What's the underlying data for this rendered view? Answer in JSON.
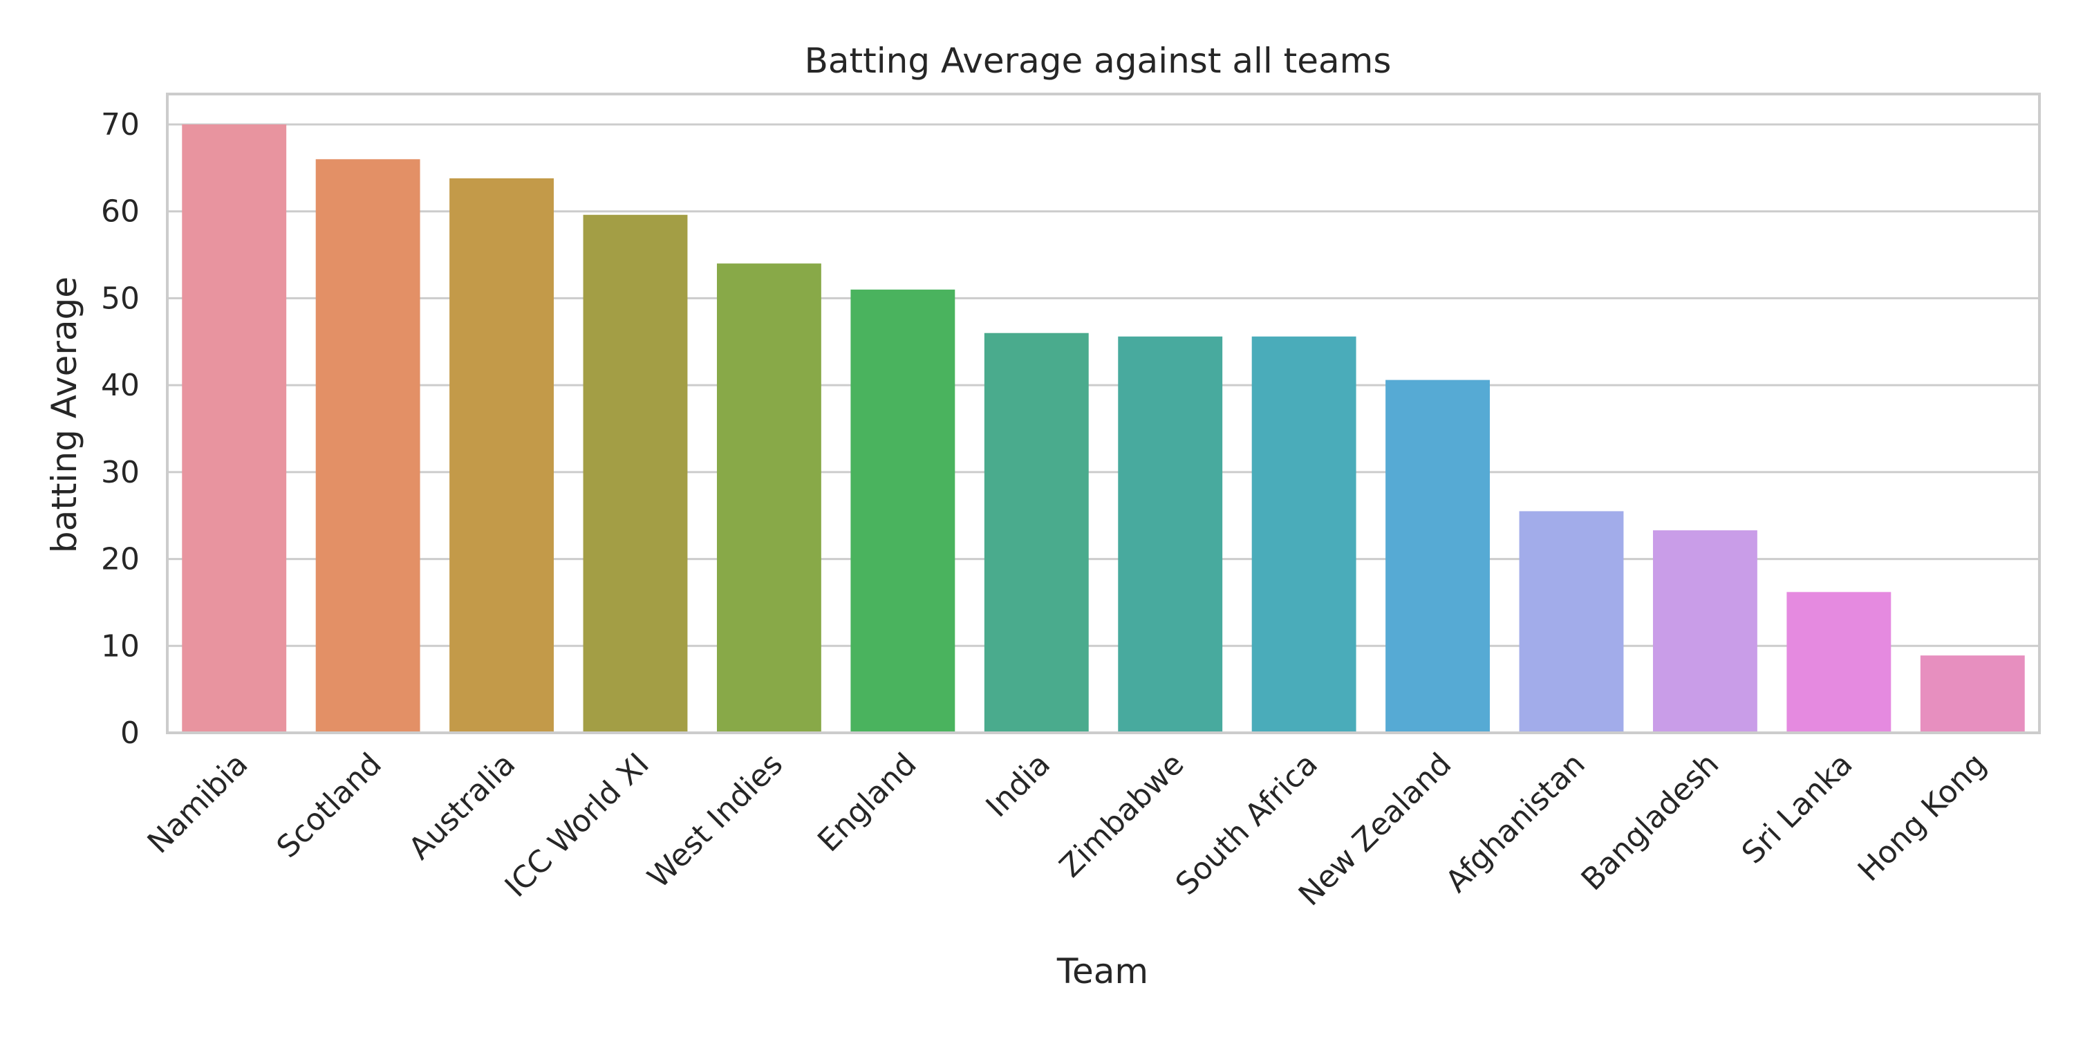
{
  "chart_data": {
    "type": "bar",
    "title": "Batting Average against all teams",
    "xlabel": "Team",
    "ylabel": "batting Average",
    "categories": [
      "Namibia",
      "Scotland",
      "Australia",
      "ICC World XI",
      "West Indies",
      "England",
      "India",
      "Zimbabwe",
      "South Africa",
      "New Zealand",
      "Afghanistan",
      "Bangladesh",
      "Sri Lanka",
      "Hong Kong"
    ],
    "values": [
      70,
      66,
      63.8,
      59.6,
      54,
      51,
      46,
      45.6,
      45.6,
      40.6,
      25.5,
      23.3,
      16.2,
      8.9
    ],
    "colors": [
      "#e8949f",
      "#e39066",
      "#c39a49",
      "#a39e45",
      "#88a948",
      "#4ab35e",
      "#4aab8d",
      "#48aa9e",
      "#4aacba",
      "#56aad4",
      "#a2acea",
      "#c99de8",
      "#e58ae0",
      "#e78fbf"
    ],
    "yticks": [
      0,
      10,
      20,
      30,
      40,
      50,
      60,
      70
    ],
    "ylim": [
      0,
      73.5
    ],
    "grid": true,
    "legend": "none"
  }
}
